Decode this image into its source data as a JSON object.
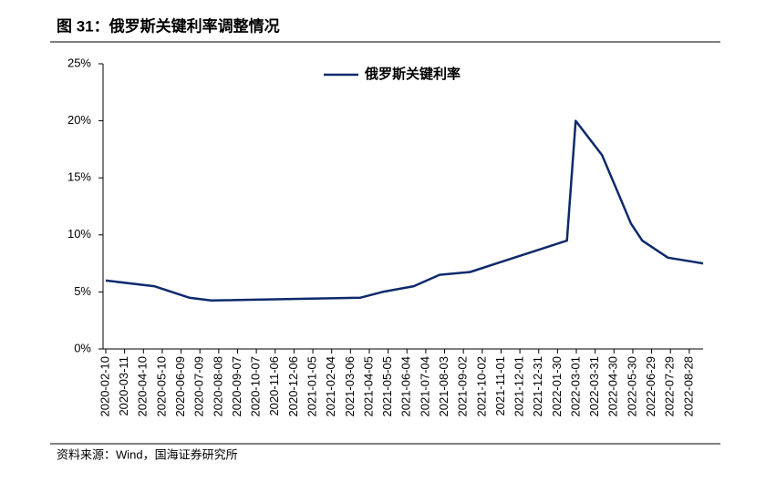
{
  "chart_data": {
    "type": "line",
    "title": "图 31：俄罗斯关键利率调整情况",
    "source": "资料来源：Wind，国海证券研究所",
    "x": [
      "2020-02-10",
      "2020-04-27",
      "2020-06-22",
      "2020-07-27",
      "2021-03-22",
      "2021-04-26",
      "2021-06-15",
      "2021-07-26",
      "2021-09-13",
      "2021-10-25",
      "2021-12-20",
      "2022-02-14",
      "2022-02-28",
      "2022-04-11",
      "2022-05-04",
      "2022-05-27",
      "2022-06-14",
      "2022-07-25",
      "2022-09-19"
    ],
    "series": [
      {
        "name": "俄罗斯关键利率",
        "color": "#0d2a6b",
        "values": [
          6.0,
          5.5,
          4.5,
          4.25,
          4.5,
          5.0,
          5.5,
          6.5,
          6.75,
          7.5,
          8.5,
          9.5,
          20,
          17,
          14,
          11,
          9.5,
          8.0,
          7.5
        ]
      }
    ],
    "xlim": [
      "2020-02-10",
      "2022-09-19"
    ],
    "xticks": [
      "2020-02-10",
      "2020-03-11",
      "2020-04-10",
      "2020-05-10",
      "2020-06-09",
      "2020-07-09",
      "2020-08-08",
      "2020-09-07",
      "2020-10-07",
      "2020-11-06",
      "2020-12-06",
      "2021-01-05",
      "2021-02-04",
      "2021-03-06",
      "2021-04-05",
      "2021-05-05",
      "2021-06-04",
      "2021-07-04",
      "2021-08-03",
      "2021-09-02",
      "2021-10-02",
      "2021-11-01",
      "2021-12-01",
      "2021-12-31",
      "2022-01-30",
      "2022-03-01",
      "2022-03-31",
      "2022-04-30",
      "2022-05-30",
      "2022-06-29",
      "2022-07-29",
      "2022-08-28"
    ],
    "ylim": [
      0,
      25
    ],
    "yticks": [
      {
        "value": 0,
        "label": "0%"
      },
      {
        "value": 5,
        "label": "5%"
      },
      {
        "value": 10,
        "label": "10%"
      },
      {
        "value": 15,
        "label": "15%"
      },
      {
        "value": 20,
        "label": "20%"
      },
      {
        "value": 25,
        "label": "25%"
      }
    ]
  }
}
